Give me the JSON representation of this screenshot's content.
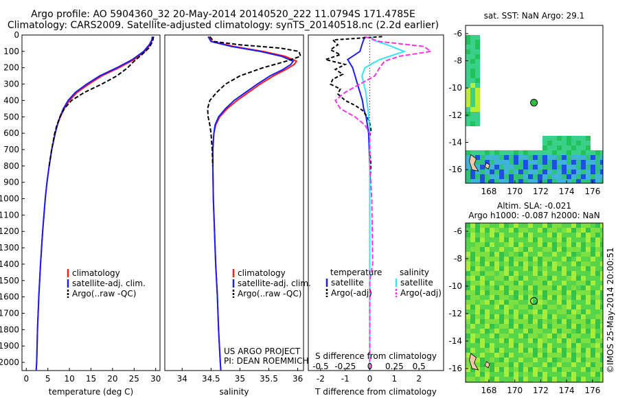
{
  "header": {
    "title_line1": "Argo profile: AO 5904360_32 20-May-2014 20140520_222 11.0794S 171.4785E",
    "title_line2": "Climatology: CARS2009. Satellite-adjusted climatology: synTS_20140518.nc (2.2d earlier)"
  },
  "colors": {
    "climatology": "#ff1a1a",
    "satellite": "#1a1aff",
    "argo": "#000000",
    "sal_satellite": "#33e6f2",
    "sal_argo": "#ff33e6"
  },
  "chart_data": [
    {
      "id": "temperature",
      "type": "line",
      "xlabel": "temperature (deg C)",
      "xlim": [
        -1,
        31
      ],
      "xticks": [
        0,
        5,
        10,
        15,
        20,
        25,
        30
      ],
      "ylim": [
        2050,
        0
      ],
      "yticks": [
        0,
        100,
        200,
        300,
        400,
        500,
        600,
        700,
        800,
        900,
        1000,
        1100,
        1200,
        1300,
        1400,
        1500,
        1600,
        1700,
        1800,
        1900,
        2000
      ],
      "legend": [
        "climatology",
        "satellite-adj. clim.",
        "Argo(..raw -QC)"
      ],
      "series": [
        {
          "name": "climatology",
          "depth": [
            10,
            30,
            60,
            100,
            150,
            200,
            250,
            300,
            350,
            400,
            450,
            500,
            550,
            600,
            700,
            800,
            900,
            1000,
            1200,
            1400,
            1600,
            1800,
            2000,
            2050
          ],
          "values": [
            29.3,
            29.2,
            28.7,
            27.5,
            25,
            21.5,
            17.5,
            14.5,
            11.8,
            10,
            8.8,
            7.9,
            7.2,
            6.7,
            5.9,
            5.3,
            4.8,
            4.4,
            3.8,
            3.3,
            2.9,
            2.6,
            2.4,
            2.3
          ]
        },
        {
          "name": "satellite-adj. clim.",
          "depth": [
            10,
            30,
            60,
            100,
            150,
            200,
            250,
            300,
            350,
            400,
            450,
            500,
            550,
            600,
            700,
            800,
            900,
            1000,
            1200,
            1400,
            1600,
            1800,
            2000,
            2050
          ],
          "values": [
            29.2,
            29.1,
            28.5,
            27.2,
            24.6,
            21,
            17,
            14,
            11.4,
            9.7,
            8.6,
            7.8,
            7.2,
            6.7,
            5.9,
            5.3,
            4.8,
            4.4,
            3.8,
            3.3,
            2.9,
            2.6,
            2.4,
            2.3
          ]
        },
        {
          "name": "Argo(..raw -QC)",
          "depth": [
            10,
            40,
            80,
            120,
            160,
            200,
            250,
            300,
            350,
            400,
            450,
            500,
            550,
            600,
            700,
            800
          ],
          "values": [
            29.5,
            29.3,
            28.4,
            26.8,
            25,
            23.5,
            21,
            17.5,
            13.5,
            10.5,
            8.8,
            7.8,
            7.1,
            6.6,
            5.9,
            5.3
          ]
        }
      ]
    },
    {
      "id": "salinity",
      "type": "line",
      "xlabel": "salinity",
      "xlim": [
        33.7,
        36.1
      ],
      "xticks": [
        34,
        34.5,
        35,
        35.5,
        36
      ],
      "xticklabels": [
        "34",
        "34.5",
        "35",
        "35.5",
        "36"
      ],
      "ylim": [
        2050,
        0
      ],
      "legend": [
        "climatology",
        "satellite-adj. clim.",
        "Argo(..raw -QC)"
      ],
      "annotation": [
        "US ARGO PROJECT",
        "PI: DEAN ROEMMICH"
      ],
      "series": [
        {
          "name": "climatology",
          "depth": [
            10,
            40,
            70,
            100,
            130,
            160,
            180,
            210,
            250,
            300,
            350,
            400,
            450,
            500,
            550,
            600,
            700,
            800,
            1000,
            1200,
            1400,
            1600,
            1800,
            2000,
            2050
          ],
          "values": [
            34.45,
            34.52,
            34.9,
            35.4,
            35.78,
            35.98,
            35.94,
            35.8,
            35.58,
            35.35,
            35.15,
            34.95,
            34.78,
            34.65,
            34.58,
            34.55,
            34.53,
            34.53,
            34.54,
            34.56,
            34.58,
            34.61,
            34.63,
            34.66,
            34.67
          ]
        },
        {
          "name": "satellite-adj. clim.",
          "depth": [
            10,
            40,
            70,
            100,
            130,
            160,
            180,
            210,
            250,
            300,
            350,
            400,
            450,
            500,
            550,
            600,
            700,
            800,
            1000,
            1200,
            1400,
            1600,
            1800,
            2000,
            2050
          ],
          "values": [
            34.45,
            34.5,
            34.85,
            35.35,
            35.72,
            35.92,
            35.88,
            35.75,
            35.52,
            35.3,
            35.1,
            34.9,
            34.75,
            34.63,
            34.57,
            34.55,
            34.53,
            34.53,
            34.54,
            34.56,
            34.58,
            34.61,
            34.63,
            34.66,
            34.67
          ]
        },
        {
          "name": "Argo(..raw -QC)",
          "depth": [
            10,
            40,
            60,
            80,
            100,
            130,
            160,
            200,
            250,
            300,
            350,
            400,
            450,
            500,
            550,
            600,
            700,
            800
          ],
          "values": [
            34.48,
            34.55,
            35,
            35.7,
            36.02,
            36.05,
            35.8,
            35.4,
            35,
            34.75,
            34.6,
            34.48,
            34.44,
            34.45,
            34.48,
            34.5,
            34.52,
            34.53
          ]
        }
      ]
    },
    {
      "id": "difference",
      "type": "line",
      "xlabel": "T difference from climatology",
      "xlabel2": "S difference from climatology",
      "xlim": [
        -2.5,
        3
      ],
      "xticks": [
        -2,
        -1,
        0,
        1,
        2
      ],
      "xticks2": [
        -0.5,
        -0.25,
        0,
        0.25,
        0.5
      ],
      "xticklabels2": [
        "-0.5",
        "-0.25",
        "0",
        "0.25",
        "0.5"
      ],
      "ylim": [
        2050,
        0
      ],
      "legend": {
        "temperature": [
          "satellite",
          "Argo(-adj)"
        ],
        "salinity": [
          "satellite",
          "Argo(-adj)"
        ]
      },
      "legend_headers": [
        "temperature",
        "salinity"
      ],
      "series": [
        {
          "name": "temperature satellite",
          "depth": [
            10,
            50,
            100,
            150,
            200,
            250,
            300,
            350,
            400,
            450,
            500,
            550,
            600,
            800,
            1000,
            1500,
            2000,
            2050
          ],
          "values": [
            -0.2,
            -0.3,
            -0.4,
            -0.9,
            -0.7,
            -0.6,
            -0.5,
            -0.4,
            -0.3,
            -0.25,
            -0.15,
            -0.1,
            -0.05,
            0,
            0,
            0,
            0,
            0
          ]
        },
        {
          "name": "temperature Argo(-adj)",
          "depth": [
            10,
            30,
            60,
            90,
            120,
            150,
            180,
            210,
            240,
            270,
            300,
            330,
            360,
            400,
            430,
            460,
            500,
            540,
            580,
            620,
            700,
            800,
            900,
            1000,
            1200,
            1400,
            1600,
            1800,
            2000,
            2050
          ],
          "values": [
            0.5,
            -1.5,
            -1.3,
            -1.6,
            -1.2,
            -1.8,
            -1.0,
            -1.4,
            -1.1,
            -1.5,
            -1.6,
            -1.2,
            -1.3,
            -1.0,
            -0.6,
            -0.3,
            -0.1,
            0,
            0.05,
            0,
            0,
            0.05,
            0,
            0,
            0,
            0,
            0,
            0,
            0,
            0
          ]
        },
        {
          "name": "salinity satellite",
          "depth": [
            10,
            30,
            60,
            100,
            150,
            200,
            250,
            300,
            350,
            400,
            450,
            500,
            600,
            800,
            1000,
            1500,
            2000,
            2050
          ],
          "values": [
            0.02,
            0.03,
            0.18,
            0.35,
            0.1,
            -0.05,
            -0.08,
            -0.06,
            -0.04,
            -0.03,
            -0.02,
            -0.01,
            0,
            0,
            0,
            0,
            0,
            0
          ]
        },
        {
          "name": "salinity Argo(-adj)",
          "depth": [
            10,
            40,
            70,
            100,
            130,
            160,
            200,
            250,
            300,
            350,
            400,
            450,
            500,
            550,
            600,
            800,
            1000,
            1400,
            1500,
            1800,
            2000,
            2050
          ],
          "values": [
            -0.05,
            0.1,
            0.55,
            0.62,
            0.3,
            0.15,
            0.1,
            0.05,
            -0.1,
            -0.25,
            -0.35,
            -0.3,
            -0.15,
            -0.05,
            0,
            0,
            0.02,
            0.03,
            0,
            0,
            0,
            0
          ]
        }
      ]
    },
    {
      "id": "sst_map",
      "type": "heatmap",
      "title": "sat. SST: NaN Argo: 29.1",
      "xlim": [
        166.2,
        176.8
      ],
      "ylim": [
        -17,
        -5.4
      ],
      "xticks": [
        168,
        170,
        172,
        174,
        176
      ],
      "yticks": [
        -6,
        -8,
        -10,
        -12,
        -14,
        -16
      ],
      "argo_position": {
        "lon": 171.4785,
        "lat": -11.0794
      }
    },
    {
      "id": "sla_map",
      "type": "heatmap",
      "title_line1": "Altim. SLA: -0.021",
      "title_line2": "Argo h1000: -0.087 h2000: NaN",
      "xlim": [
        166.2,
        176.8
      ],
      "ylim": [
        -17,
        -5.4
      ],
      "xticks": [
        168,
        170,
        172,
        174,
        176
      ],
      "yticks": [
        -6,
        -8,
        -10,
        -12,
        -14,
        -16
      ],
      "argo_position": {
        "lon": 171.4785,
        "lat": -11.0794
      }
    }
  ],
  "footer": {
    "credit": "©IMOS 25-May-2014 20:00:51"
  }
}
